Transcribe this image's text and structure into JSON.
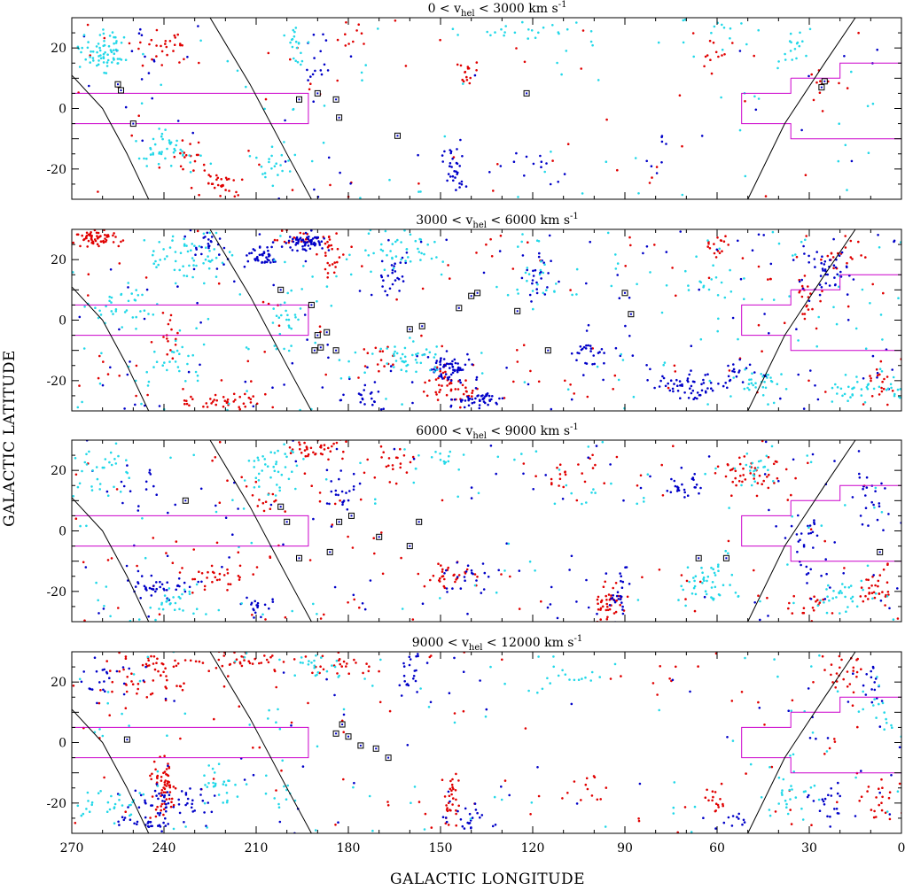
{
  "figure": {
    "xlabel": "GALACTIC LONGITUDE",
    "ylabel": "GALACTIC LATITUDE",
    "colors": {
      "red": "#e00000",
      "blue": "#0000c8",
      "cyan": "#22d8e8",
      "box": "#cc00cc",
      "curve": "#000000"
    }
  },
  "chart_data": [
    {
      "type": "scatter",
      "title_pre": "3000 < v",
      "title_sub": "hel",
      "title_post": " < 6000 km s",
      "title_sup": "-1",
      "xlim": [
        270,
        0
      ],
      "ylim": [
        -30,
        30
      ],
      "xticks": [
        270,
        240,
        210,
        180,
        150,
        120,
        90,
        60,
        30,
        0
      ],
      "yticks": [
        -20,
        0,
        20
      ],
      "squares": [
        [
          202,
          10
        ],
        [
          192,
          5
        ],
        [
          187,
          -4
        ],
        [
          190,
          -5
        ],
        [
          189,
          -9
        ],
        [
          191,
          -10
        ],
        [
          184,
          -10
        ],
        [
          160,
          -3
        ],
        [
          156,
          -2
        ],
        [
          144,
          4
        ],
        [
          140,
          8
        ],
        [
          138,
          9
        ],
        [
          125,
          3
        ],
        [
          115,
          -10
        ],
        [
          90,
          9
        ],
        [
          88,
          2
        ]
      ],
      "series": [
        {
          "color": "red",
          "seed": 21,
          "clusters": [
            [
              262,
              27,
              6,
              2,
              60
            ],
            [
              196,
              27,
              6,
              2,
              25
            ],
            [
              186,
              22,
              3,
              5,
              25
            ],
            [
              222,
              -27,
              10,
              2,
              40
            ],
            [
              238,
              -5,
              2,
              6,
              15
            ],
            [
              150,
              -20,
              3,
              4,
              25
            ],
            [
              144,
              -24,
              4,
              3,
              20
            ],
            [
              30,
              8,
              3,
              6,
              20
            ],
            [
              8,
              -22,
              3,
              4,
              15
            ],
            [
              60,
              25,
              4,
              3,
              15
            ],
            [
              170,
              -12,
              4,
              6,
              15
            ],
            [
              20,
              22,
              5,
              4,
              15
            ]
          ],
          "scatter": 120
        },
        {
          "color": "blue",
          "seed": 22,
          "clusters": [
            [
              194,
              26,
              5,
              2,
              60
            ],
            [
              208,
              21,
              4,
              2,
              40
            ],
            [
              148,
              -16,
              5,
              3,
              60
            ],
            [
              138,
              -26,
              6,
              2,
              50
            ],
            [
              102,
              -10,
              4,
              8,
              50
            ],
            [
              70,
              -22,
              8,
              3,
              50
            ],
            [
              24,
              15,
              5,
              6,
              40
            ],
            [
              166,
              14,
              4,
              6,
              25
            ],
            [
              118,
              14,
              4,
              6,
              25
            ],
            [
              226,
              24,
              4,
              4,
              20
            ],
            [
              176,
              -25,
              6,
              3,
              20
            ],
            [
              90,
              -2,
              2,
              8,
              20
            ],
            [
              52,
              -18,
              6,
              3,
              20
            ]
          ],
          "scatter": 130
        },
        {
          "color": "cyan",
          "seed": 23,
          "clusters": [
            [
              232,
              20,
              10,
              6,
              50
            ],
            [
              160,
              -12,
              8,
              4,
              40
            ],
            [
              162,
              22,
              10,
              5,
              40
            ],
            [
              255,
              4,
              8,
              6,
              30
            ],
            [
              10,
              -22,
              8,
              4,
              40
            ],
            [
              240,
              -15,
              8,
              6,
              25
            ],
            [
              46,
              -20,
              6,
              3,
              25
            ],
            [
              200,
              0,
              4,
              8,
              25
            ],
            [
              120,
              10,
              8,
              8,
              25
            ],
            [
              60,
              10,
              6,
              8,
              20
            ]
          ],
          "scatter": 160
        }
      ]
    },
    {
      "type": "scatter",
      "title_pre": "0 < v",
      "title_sub": "hel",
      "title_post": " < 3000 km s",
      "title_sup": "-1",
      "xlim": [
        270,
        0
      ],
      "ylim": [
        -30,
        30
      ],
      "xticks": [
        270,
        240,
        210,
        180,
        150,
        120,
        90,
        60,
        30,
        0
      ],
      "yticks": [
        -20,
        0,
        20
      ],
      "squares": [
        [
          255,
          8
        ],
        [
          254,
          6
        ],
        [
          250,
          -5
        ],
        [
          196,
          3
        ],
        [
          190,
          5
        ],
        [
          184,
          3
        ],
        [
          183,
          -3
        ],
        [
          164,
          -9
        ],
        [
          122,
          5
        ],
        [
          26,
          7
        ],
        [
          25,
          9
        ]
      ],
      "series": [
        {
          "color": "red",
          "seed": 11,
          "clusters": [
            [
              240,
              20,
              6,
              5,
              25
            ],
            [
              222,
              -25,
              6,
              3,
              30
            ],
            [
              232,
              -15,
              5,
              5,
              15
            ],
            [
              142,
              12,
              2,
              4,
              15
            ],
            [
              26,
              10,
              3,
              5,
              10
            ],
            [
              180,
              25,
              4,
              3,
              10
            ],
            [
              60,
              20,
              5,
              4,
              10
            ]
          ],
          "scatter": 60
        },
        {
          "color": "blue",
          "seed": 12,
          "clusters": [
            [
              146,
              -20,
              2,
              6,
              30
            ],
            [
              190,
              15,
              3,
              8,
              15
            ],
            [
              120,
              -20,
              5,
              5,
              10
            ],
            [
              80,
              -15,
              4,
              5,
              8
            ],
            [
              246,
              15,
              3,
              8,
              10
            ]
          ],
          "scatter": 40
        },
        {
          "color": "cyan",
          "seed": 13,
          "clusters": [
            [
              260,
              18,
              7,
              5,
              70
            ],
            [
              240,
              -13,
              6,
              5,
              40
            ],
            [
              205,
              -20,
              4,
              6,
              20
            ],
            [
              196,
              22,
              5,
              4,
              20
            ],
            [
              120,
              25,
              10,
              3,
              20
            ],
            [
              36,
              20,
              6,
              5,
              15
            ],
            [
              60,
              25,
              10,
              3,
              10
            ]
          ],
          "scatter": 80
        }
      ]
    },
    {
      "type": "scatter",
      "title_pre": "6000 < v",
      "title_sub": "hel",
      "title_post": " < 9000 km s",
      "title_sup": "-1",
      "xlim": [
        270,
        0
      ],
      "ylim": [
        -30,
        30
      ],
      "xticks": [
        270,
        240,
        210,
        180,
        150,
        120,
        90,
        60,
        30,
        0
      ],
      "yticks": [
        -20,
        0,
        20
      ],
      "squares": [
        [
          233,
          10
        ],
        [
          202,
          8
        ],
        [
          200,
          3
        ],
        [
          196,
          -9
        ],
        [
          186,
          -7
        ],
        [
          183,
          3
        ],
        [
          179,
          5
        ],
        [
          170,
          -2
        ],
        [
          160,
          -5
        ],
        [
          157,
          3
        ],
        [
          66,
          -9
        ],
        [
          57,
          -9
        ],
        [
          7,
          -7
        ]
      ],
      "series": [
        {
          "color": "red",
          "seed": 31,
          "clusters": [
            [
              190,
              27,
              6,
              3,
              40
            ],
            [
              165,
              22,
              5,
              4,
              20
            ],
            [
              147,
              -15,
              6,
              3,
              30
            ],
            [
              95,
              -24,
              3,
              5,
              40
            ],
            [
              50,
              20,
              10,
              5,
              40
            ],
            [
              8,
              -20,
              4,
              5,
              30
            ],
            [
              225,
              -15,
              8,
              3,
              30
            ],
            [
              206,
              10,
              3,
              4,
              10
            ],
            [
              110,
              18,
              6,
              4,
              15
            ],
            [
              30,
              -25,
              5,
              3,
              15
            ],
            [
              175,
              0,
              6,
              6,
              20
            ]
          ],
          "scatter": 120
        },
        {
          "color": "blue",
          "seed": 32,
          "clusters": [
            [
              242,
              -18,
              8,
              3,
              40
            ],
            [
              210,
              -24,
              4,
              4,
              20
            ],
            [
              183,
              10,
              5,
              8,
              30
            ],
            [
              92,
              -20,
              3,
              5,
              25
            ],
            [
              70,
              14,
              4,
              4,
              25
            ],
            [
              30,
              -5,
              6,
              8,
              25
            ],
            [
              10,
              10,
              4,
              6,
              20
            ],
            [
              140,
              -15,
              6,
              4,
              20
            ],
            [
              250,
              15,
              6,
              6,
              15
            ]
          ],
          "scatter": 110
        },
        {
          "color": "cyan",
          "seed": 33,
          "clusters": [
            [
              258,
              20,
              8,
              6,
              30
            ],
            [
              204,
              20,
              6,
              6,
              40
            ],
            [
              62,
              -18,
              6,
              5,
              40
            ],
            [
              20,
              -22,
              6,
              4,
              30
            ],
            [
              237,
              -22,
              6,
              4,
              25
            ],
            [
              48,
              20,
              6,
              4,
              20
            ],
            [
              150,
              22,
              6,
              4,
              15
            ],
            [
              100,
              10,
              8,
              8,
              15
            ]
          ],
          "scatter": 100
        }
      ]
    },
    {
      "type": "scatter",
      "title_pre": "9000 < v",
      "title_sub": "hel",
      "title_post": " < 12000 km s",
      "title_sup": "-1",
      "xlim": [
        270,
        0
      ],
      "ylim": [
        -30,
        30
      ],
      "xticks": [
        270,
        240,
        210,
        180,
        150,
        120,
        90,
        60,
        30,
        0
      ],
      "yticks": [
        -20,
        0,
        20
      ],
      "squares": [
        [
          252,
          1
        ],
        [
          184,
          3
        ],
        [
          182,
          6
        ],
        [
          180,
          2
        ],
        [
          176,
          -1
        ],
        [
          171,
          -2
        ],
        [
          167,
          -5
        ]
      ],
      "series": [
        {
          "color": "red",
          "seed": 41,
          "clusters": [
            [
              248,
              22,
              12,
              6,
              60
            ],
            [
              215,
              27,
              10,
              3,
              40
            ],
            [
              180,
              26,
              10,
              3,
              25
            ],
            [
              240,
              -15,
              3,
              7,
              60
            ],
            [
              146,
              -20,
              2,
              7,
              30
            ],
            [
              60,
              -20,
              3,
              4,
              15
            ],
            [
              20,
              22,
              5,
              6,
              25
            ],
            [
              8,
              -20,
              5,
              4,
              20
            ],
            [
              180,
              5,
              4,
              4,
              10
            ],
            [
              100,
              -15,
              4,
              4,
              10
            ]
          ],
          "scatter": 100
        },
        {
          "color": "blue",
          "seed": 42,
          "clusters": [
            [
              236,
              -20,
              8,
              5,
              50
            ],
            [
              245,
              -26,
              8,
              2,
              25
            ],
            [
              260,
              22,
              6,
              5,
              20
            ],
            [
              160,
              22,
              4,
              5,
              20
            ],
            [
              140,
              -25,
              5,
              3,
              20
            ],
            [
              25,
              -20,
              6,
              5,
              20
            ],
            [
              10,
              18,
              4,
              5,
              15
            ],
            [
              52,
              -26,
              4,
              2,
              10
            ]
          ],
          "scatter": 80
        },
        {
          "color": "cyan",
          "seed": 43,
          "clusters": [
            [
              255,
              -20,
              8,
              5,
              30
            ],
            [
              222,
              -14,
              6,
              5,
              25
            ],
            [
              190,
              25,
              8,
              3,
              20
            ],
            [
              35,
              -18,
              6,
              5,
              25
            ],
            [
              110,
              20,
              10,
              5,
              15
            ],
            [
              5,
              10,
              5,
              8,
              15
            ],
            [
              200,
              -18,
              4,
              4,
              10
            ]
          ],
          "scatter": 100
        }
      ]
    }
  ],
  "curves": {
    "left_a": [
      [
        270,
        11
      ],
      [
        260,
        0
      ],
      [
        252,
        -15
      ],
      [
        245,
        -30
      ]
    ],
    "left_b": [
      [
        225,
        30
      ],
      [
        212,
        8
      ],
      [
        200,
        -15
      ],
      [
        192,
        -30
      ]
    ],
    "right": [
      [
        50,
        -30
      ],
      [
        38,
        -5
      ],
      [
        25,
        15
      ],
      [
        15,
        30
      ]
    ]
  },
  "boxes": {
    "left": [
      [
        270,
        5
      ],
      [
        193,
        5
      ],
      [
        193,
        -5
      ],
      [
        270,
        -5
      ]
    ],
    "right_inner": [
      [
        0,
        -10
      ],
      [
        36,
        -10
      ],
      [
        36,
        -5
      ],
      [
        52,
        -5
      ],
      [
        52,
        5
      ],
      [
        36,
        5
      ],
      [
        36,
        10
      ]
    ],
    "right_upper": [
      [
        0,
        15
      ],
      [
        20,
        15
      ],
      [
        20,
        10
      ],
      [
        36,
        10
      ]
    ]
  }
}
